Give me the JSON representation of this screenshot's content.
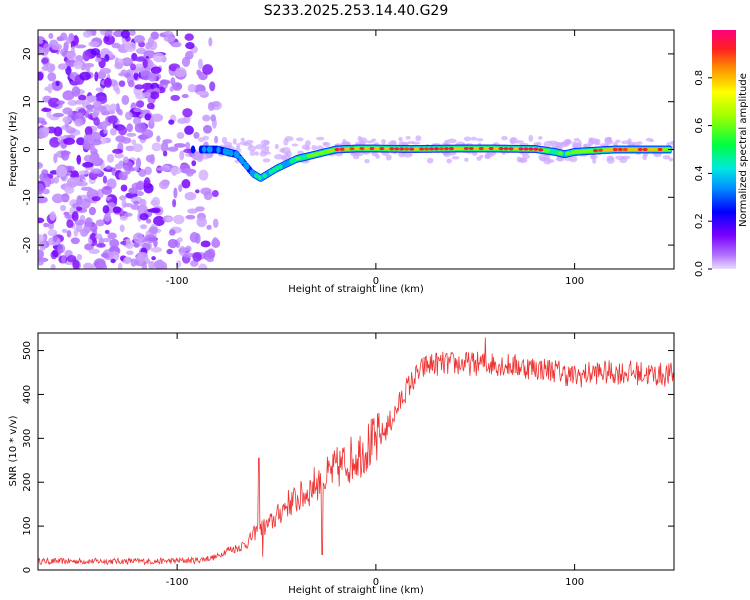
{
  "title": "S233.2025.253.14.40.G29",
  "chart_data": [
    {
      "type": "heatmap",
      "xlabel": "Height of straight line (km)",
      "ylabel": "Frequency (Hz)",
      "xlim": [
        -170,
        150
      ],
      "ylim": [
        -25,
        25
      ],
      "xticks": [
        -100,
        0,
        100
      ],
      "yticks": [
        -20,
        -10,
        0,
        10,
        20
      ],
      "colorbar": {
        "label": "Normalized spectral amplitude",
        "range": [
          0,
          1
        ],
        "ticks": [
          "0.0",
          "0.2",
          "0.4",
          "0.6",
          "0.8"
        ],
        "tick_values": [
          0.0,
          0.2,
          0.4,
          0.6,
          0.8
        ]
      },
      "ridge": {
        "description": "dominant frequency track",
        "x": [
          -92,
          -80,
          -70,
          -62,
          -58,
          -50,
          -40,
          -30,
          -20,
          -10,
          0,
          20,
          40,
          60,
          80,
          90,
          95,
          100,
          120,
          140,
          148
        ],
        "frequency": [
          0,
          0,
          -1,
          -5,
          -6,
          -4,
          -2,
          -1,
          0,
          0.2,
          0.2,
          0.1,
          0.2,
          0.2,
          0.1,
          -0.5,
          -1,
          -0.5,
          0,
          0,
          0
        ],
        "amplitude": [
          0.25,
          0.3,
          0.3,
          0.35,
          0.4,
          0.4,
          0.45,
          0.6,
          0.75,
          0.85,
          0.8,
          0.7,
          0.75,
          0.85,
          0.8,
          0.5,
          0.45,
          0.6,
          0.9,
          0.85,
          0.6
        ]
      },
      "noise_region_x": [
        -170,
        -90
      ]
    },
    {
      "type": "line",
      "xlabel": "Height of straight line (km)",
      "ylabel": "SNR (10 * v/v)",
      "xlim": [
        -170,
        150
      ],
      "ylim": [
        0,
        540
      ],
      "xticks": [
        -100,
        0,
        100
      ],
      "yticks": [
        0,
        100,
        200,
        300,
        400,
        500
      ],
      "color": "#ee3333",
      "series": [
        {
          "name": "SNR",
          "x": [
            -170,
            -150,
            -130,
            -110,
            -90,
            -80,
            -75,
            -70,
            -65,
            -60,
            -55,
            -50,
            -45,
            -40,
            -35,
            -30,
            -25,
            -20,
            -15,
            -10,
            -5,
            0,
            5,
            10,
            15,
            20,
            25,
            30,
            40,
            50,
            60,
            70,
            80,
            90,
            100,
            110,
            120,
            130,
            140,
            150
          ],
          "values": [
            20,
            20,
            20,
            20,
            22,
            30,
            45,
            50,
            60,
            90,
            100,
            120,
            150,
            160,
            175,
            200,
            210,
            230,
            245,
            260,
            280,
            290,
            320,
            360,
            410,
            440,
            465,
            470,
            470,
            470,
            470,
            465,
            460,
            455,
            440,
            450,
            450,
            450,
            445,
            445
          ]
        }
      ],
      "spikes": [
        {
          "x": -59,
          "value": 255
        },
        {
          "x": -57,
          "value": 30
        },
        {
          "x": -27,
          "value": 35
        },
        {
          "x": 55,
          "value": 530
        }
      ]
    }
  ]
}
